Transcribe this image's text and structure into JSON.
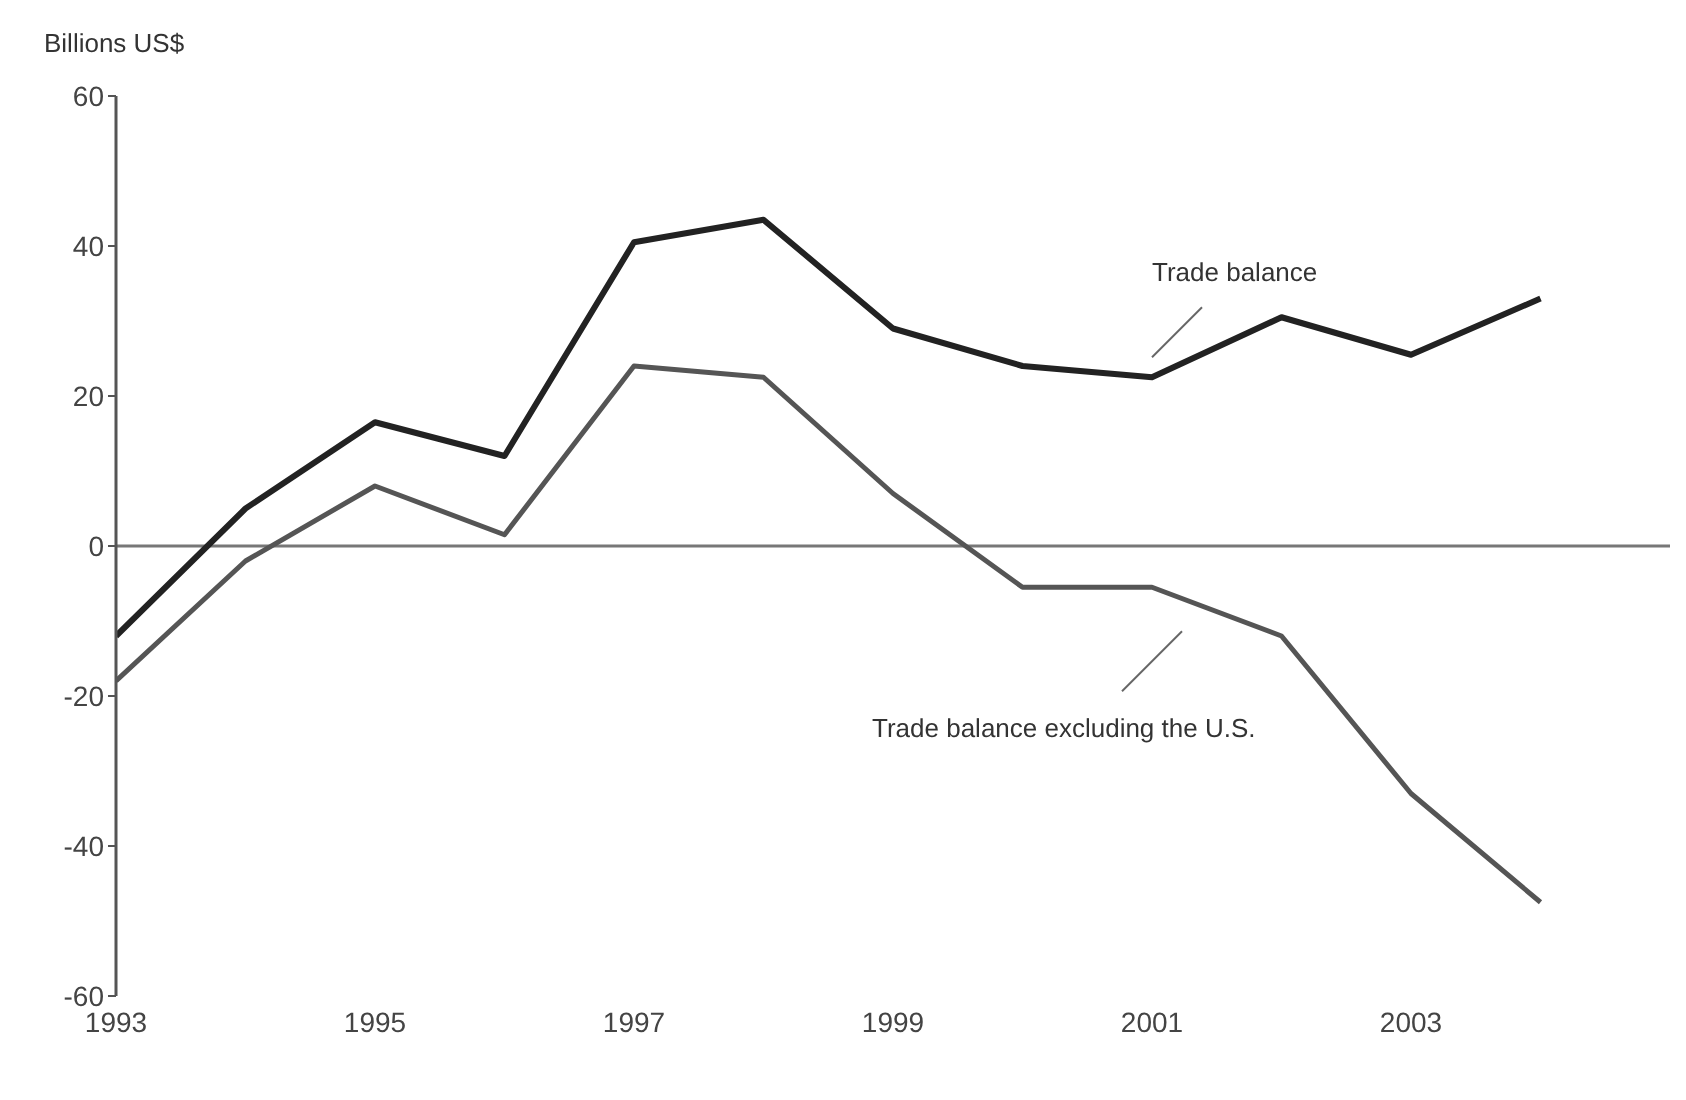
{
  "chart_data": {
    "type": "line",
    "ylabel": "Billions US$",
    "x": [
      1993,
      1994,
      1995,
      1996,
      1997,
      1998,
      1999,
      2000,
      2001,
      2002,
      2003,
      2004
    ],
    "series": [
      {
        "name": "Trade balance",
        "color": "#222222",
        "values": [
          -12,
          5,
          16.5,
          12,
          40.5,
          43.5,
          29,
          24,
          22.5,
          30.5,
          25.5,
          33
        ]
      },
      {
        "name": "Trade balance excluding the U.S.",
        "color": "#555555",
        "values": [
          -18,
          -2,
          8,
          1.5,
          24,
          22.5,
          7,
          -5.5,
          -5.5,
          -12,
          -33,
          -47.5
        ]
      }
    ],
    "xlim": [
      1993,
      2005
    ],
    "xticks": [
      1993,
      1995,
      1997,
      1999,
      2001,
      2003
    ],
    "ylim": [
      -60,
      60
    ],
    "yticks": [
      -60,
      -40,
      -20,
      0,
      20,
      40,
      60
    ],
    "ref_lines": [
      {
        "axis": "y",
        "value": 0,
        "color": "#777777"
      }
    ],
    "grid": false,
    "legend": false,
    "marker": "none",
    "line_style": "solid"
  }
}
